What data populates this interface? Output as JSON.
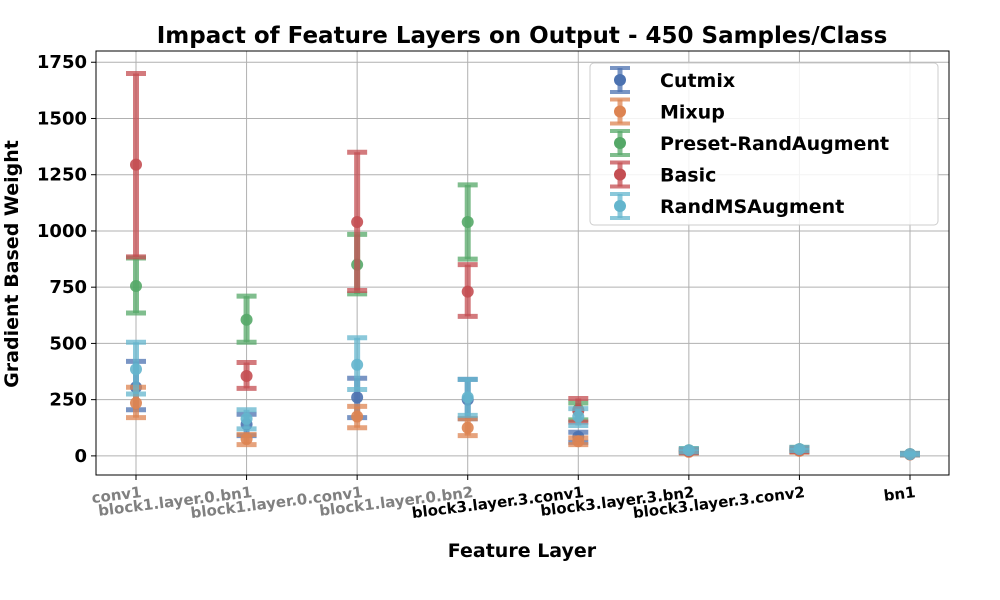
{
  "chart_data": {
    "type": "errorbar",
    "title": "Impact of Feature Layers on Output - 450 Samples/Class",
    "xlabel": "Feature Layer",
    "ylabel": "Gradient Based Weight",
    "ylim": [
      -85,
      1800
    ],
    "yticks": [
      0,
      250,
      500,
      750,
      1000,
      1250,
      1500,
      1750
    ],
    "grid": true,
    "legend_position": "top-right",
    "categories": [
      "conv1",
      "block1.layer.0.bn1",
      "block1.layer.0.conv1",
      "block1.layer.0.bn2",
      "block3.layer.3.conv1",
      "block3.layer.3.bn2",
      "block3.layer.3.conv2",
      "bn1"
    ],
    "tick_colors": [
      "#808080",
      "#808080",
      "#808080",
      "#808080",
      "#000000",
      "#000000",
      "#000000",
      "#000000"
    ],
    "series": [
      {
        "name": "Cutmix",
        "color": "#4c72b0",
        "values": [
          305,
          140,
          260,
          250,
          85,
          22,
          25,
          7
        ],
        "lower": [
          205,
          90,
          170,
          165,
          60,
          15,
          18,
          5
        ],
        "upper": [
          420,
          185,
          345,
          340,
          105,
          28,
          32,
          10
        ]
      },
      {
        "name": "Mixup",
        "color": "#dd8452",
        "values": [
          235,
          75,
          175,
          125,
          65,
          18,
          22,
          6
        ],
        "lower": [
          170,
          50,
          125,
          90,
          50,
          12,
          16,
          4
        ],
        "upper": [
          305,
          95,
          220,
          165,
          80,
          24,
          28,
          9
        ]
      },
      {
        "name": "Preset-RandAugment",
        "color": "#55a868",
        "values": [
          755,
          605,
          850,
          1040,
          205,
          25,
          30,
          8
        ],
        "lower": [
          635,
          505,
          720,
          875,
          160,
          18,
          23,
          5
        ],
        "upper": [
          880,
          710,
          985,
          1205,
          235,
          32,
          38,
          11
        ]
      },
      {
        "name": "Basic",
        "color": "#c44e52",
        "values": [
          1295,
          355,
          1040,
          730,
          200,
          22,
          28,
          7
        ],
        "lower": [
          885,
          300,
          735,
          620,
          150,
          15,
          20,
          5
        ],
        "upper": [
          1700,
          415,
          1350,
          850,
          255,
          28,
          35,
          10
        ]
      },
      {
        "name": "RandMSAugment",
        "color": "#64b5cd",
        "values": [
          385,
          165,
          405,
          260,
          175,
          25,
          30,
          8
        ],
        "lower": [
          275,
          120,
          295,
          180,
          135,
          18,
          24,
          5
        ],
        "upper": [
          505,
          205,
          525,
          340,
          210,
          32,
          38,
          11
        ]
      }
    ]
  }
}
